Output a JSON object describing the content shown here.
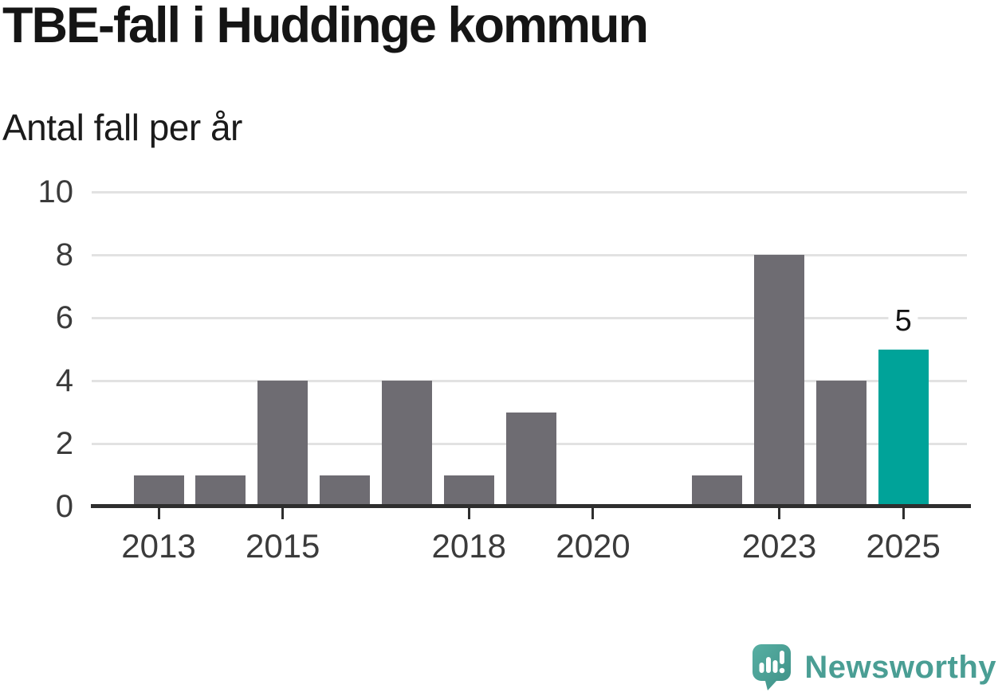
{
  "header": {
    "title": "TBE-fall i Huddinge kommun",
    "subtitle": "Antal fall per år"
  },
  "chart_data": {
    "type": "bar",
    "title": "TBE-fall i Huddinge kommun",
    "subtitle_ylabel": "Antal fall per år",
    "categories": [
      "2013",
      "2014",
      "2015",
      "2016",
      "2017",
      "2018",
      "2019",
      "2020",
      "2021",
      "2022",
      "2023",
      "2024",
      "2025"
    ],
    "values": [
      1,
      1,
      4,
      1,
      4,
      1,
      3,
      0,
      0,
      1,
      8,
      4,
      5
    ],
    "ylim": [
      0,
      10
    ],
    "y_ticks": [
      0,
      2,
      4,
      6,
      8,
      10
    ],
    "x_tick_labels": [
      "2013",
      "2015",
      "2018",
      "2020",
      "2023",
      "2025"
    ],
    "grid": "horizontal",
    "legend": "none",
    "bar_color": "#6e6c72",
    "highlight_color": "#00a399",
    "highlight_category": "2025",
    "data_labels": [
      {
        "category": "2025",
        "label": "5"
      }
    ]
  },
  "footer": {
    "brand_name": "Newsworthy",
    "brand_color": "#4a9e94",
    "logo_icon": "bar-chart-speech-bubble"
  }
}
